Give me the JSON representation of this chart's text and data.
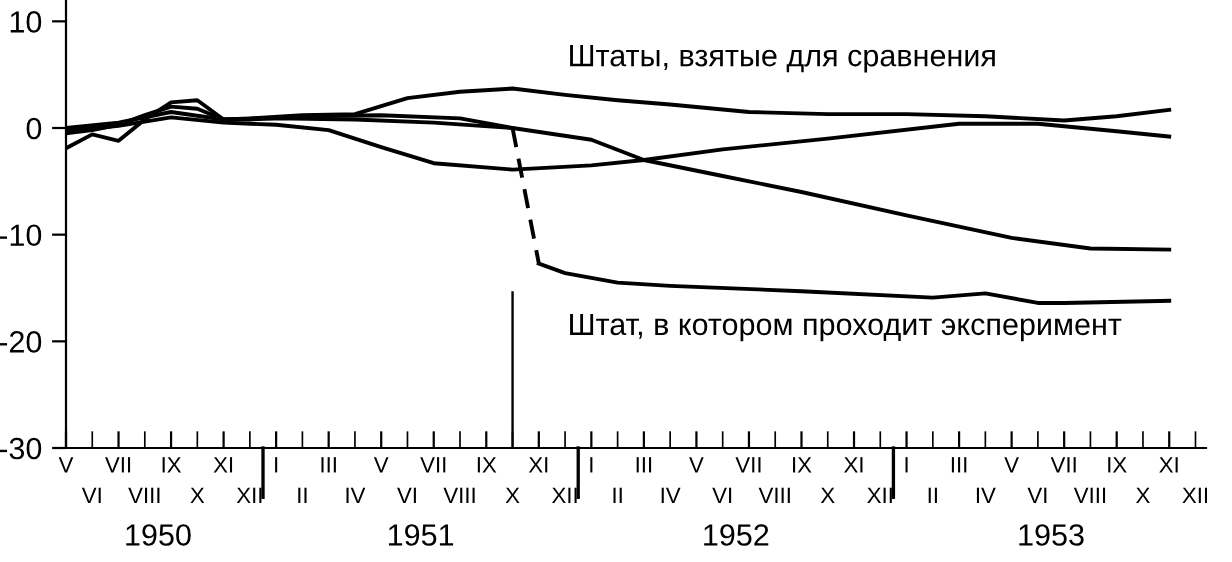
{
  "chart_data": {
    "type": "line",
    "categories": [
      "V",
      "VI",
      "VII",
      "VIII",
      "IX",
      "X",
      "XI",
      "XII",
      "I",
      "II",
      "III",
      "IV",
      "V",
      "VI",
      "VII",
      "VIII",
      "IX",
      "X",
      "XI",
      "XII",
      "I",
      "II",
      "III",
      "IV",
      "V",
      "VI",
      "VII",
      "VIII",
      "IX",
      "X",
      "XI",
      "XII",
      "I",
      "II",
      "III",
      "IV",
      "V",
      "VI",
      "VII",
      "VIII",
      "IX",
      "X",
      "XI",
      "XII"
    ],
    "series": [
      {
        "color": "#000000",
        "line_style": "solid",
        "values": [
          -0.5,
          -0.2,
          0.3,
          1.2,
          2.0,
          1.8,
          0.8,
          0.9,
          null,
          1.2,
          null,
          1.3,
          null,
          2.8,
          null,
          3.4,
          null,
          3.7,
          null,
          3.1,
          null,
          2.6,
          null,
          2.2,
          null,
          null,
          1.5,
          null,
          null,
          1.3,
          null,
          null,
          1.3,
          null,
          null,
          1.1,
          null,
          null,
          0.7,
          null,
          1.1,
          null,
          1.7,
          null
        ]
      },
      {
        "color": "#000000",
        "line_style": "solid",
        "values": [
          0.0,
          null,
          0.5,
          null,
          1.5,
          null,
          0.8,
          null,
          0.9,
          null,
          null,
          0.8,
          null,
          null,
          0.5,
          null,
          null,
          0.0,
          null,
          null,
          -1.1,
          null,
          -3.0,
          null,
          null,
          -4.5,
          null,
          null,
          -6.0,
          null,
          null,
          null,
          -8.2,
          null,
          null,
          null,
          -10.3,
          null,
          null,
          -11.3,
          null,
          null,
          -11.4,
          null
        ]
      },
      {
        "color": "#000000",
        "line_style": "solid",
        "values": [
          -0.3,
          null,
          0.2,
          null,
          1.0,
          null,
          0.5,
          null,
          0.3,
          null,
          -0.2,
          null,
          -1.8,
          null,
          -3.3,
          null,
          null,
          -3.9,
          null,
          null,
          -3.5,
          null,
          -3.0,
          null,
          null,
          -2.0,
          null,
          null,
          null,
          -1.0,
          null,
          null,
          null,
          null,
          0.4,
          null,
          null,
          0.4,
          null,
          null,
          -0.3,
          null,
          -0.8,
          null
        ]
      },
      {
        "color": "#000000",
        "line_style": "solid",
        "values": [
          -1.9,
          -0.6,
          -1.2,
          0.8,
          2.4,
          2.6,
          0.8,
          0.8,
          null,
          1.1,
          null,
          null,
          1.2,
          null,
          null,
          0.9,
          null,
          0.0,
          null,
          null,
          null,
          null,
          null,
          null,
          null,
          null,
          null,
          null,
          null,
          null,
          null,
          null,
          null,
          null,
          null,
          null,
          null,
          null,
          null,
          null,
          null,
          null,
          null,
          null
        ]
      },
      {
        "color": "#000000",
        "line_style": "dashed",
        "values": [
          null,
          null,
          null,
          null,
          null,
          null,
          null,
          null,
          null,
          null,
          null,
          null,
          null,
          null,
          null,
          null,
          null,
          0.0,
          -12.7,
          null,
          null,
          null,
          null,
          null,
          null,
          null,
          null,
          null,
          null,
          null,
          null,
          null,
          null,
          null,
          null,
          null,
          null,
          null,
          null,
          null,
          null,
          null,
          null,
          null
        ]
      },
      {
        "color": "#000000",
        "line_style": "solid",
        "values": [
          null,
          null,
          null,
          null,
          null,
          null,
          null,
          null,
          null,
          null,
          null,
          null,
          null,
          null,
          null,
          null,
          null,
          null,
          -12.7,
          -13.6,
          null,
          -14.5,
          null,
          -14.8,
          null,
          null,
          null,
          null,
          -15.3,
          null,
          null,
          null,
          null,
          -15.9,
          null,
          -15.5,
          null,
          -16.4,
          -16.4,
          null,
          null,
          null,
          -16.2,
          null
        ]
      },
      {
        "type": "bar",
        "color": "#000000",
        "values": [
          null,
          null,
          null,
          null,
          null,
          null,
          null,
          null,
          null,
          null,
          null,
          null,
          null,
          null,
          null,
          null,
          null,
          14.7,
          null,
          null,
          null,
          null,
          null,
          null,
          null,
          null,
          null,
          null,
          null,
          null,
          null,
          null,
          null,
          null,
          null,
          null,
          null,
          null,
          null,
          null,
          null,
          null,
          null,
          null
        ],
        "base": [
          null,
          null,
          null,
          null,
          null,
          null,
          null,
          null,
          null,
          null,
          null,
          null,
          null,
          null,
          null,
          null,
          null,
          -30,
          null,
          null,
          null,
          null,
          null,
          null,
          null,
          null,
          null,
          null,
          null,
          null,
          null,
          null,
          null,
          null,
          null,
          null,
          null,
          null,
          null,
          null,
          null,
          null,
          null,
          null
        ]
      }
    ],
    "annotations": [
      "Штаты, взятые для сравнения",
      "Штат, в котором проходит эксперимент",
      "1950",
      "1951",
      "1952",
      "1953"
    ],
    "ylim": [
      -30,
      12
    ],
    "yticks": [
      -30,
      -20,
      -10,
      0,
      10
    ],
    "grid": false,
    "legend": false,
    "marker": "none"
  }
}
